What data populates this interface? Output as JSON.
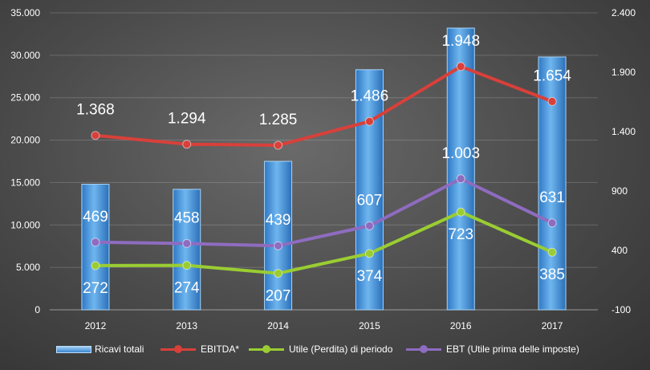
{
  "chart_data": {
    "type": "bar+line",
    "categories": [
      "2012",
      "2013",
      "2014",
      "2015",
      "2016",
      "2017"
    ],
    "left_axis": {
      "ylim": [
        0,
        35000
      ],
      "ticks": [
        "0",
        "5.000",
        "10.000",
        "15.000",
        "20.000",
        "25.000",
        "30.000",
        "35.000"
      ],
      "tick_values": [
        0,
        5000,
        10000,
        15000,
        20000,
        25000,
        30000,
        35000
      ]
    },
    "right_axis": {
      "ylim": [
        -100,
        2400
      ],
      "ticks": [
        "-100",
        "400",
        "900",
        "1.400",
        "1.900",
        "2.400"
      ],
      "tick_values": [
        -100,
        400,
        900,
        1400,
        1900,
        2400
      ]
    },
    "series": [
      {
        "name": "Ricavi totali",
        "kind": "bar",
        "axis": "left",
        "color": "#3b86d0",
        "values": [
          14800,
          14200,
          17500,
          28300,
          33200,
          29800
        ]
      },
      {
        "name": "EBITDA*",
        "kind": "line",
        "axis": "right",
        "color": "#d9403a",
        "values": [
          1368,
          1294,
          1285,
          1486,
          1948,
          1654
        ],
        "labels": [
          "1.368",
          "1.294",
          "1.285",
          "1.486",
          "1.948",
          "1.654"
        ]
      },
      {
        "name": "Utile (Perdita) di periodo",
        "kind": "line",
        "axis": "right",
        "color": "#9acd32",
        "values": [
          272,
          274,
          207,
          374,
          723,
          385
        ],
        "labels": [
          "272",
          "274",
          "207",
          "374",
          "723",
          "385"
        ]
      },
      {
        "name": "EBT (Utile prima delle imposte)",
        "kind": "line",
        "axis": "right",
        "color": "#8e6cc0",
        "values": [
          469,
          458,
          439,
          607,
          1003,
          631
        ],
        "labels": [
          "469",
          "458",
          "439",
          "607",
          "1.003",
          "631"
        ]
      }
    ],
    "grid": true,
    "legend": "bottom"
  }
}
